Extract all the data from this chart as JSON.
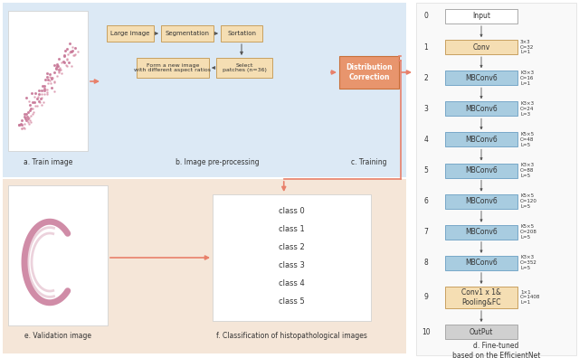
{
  "fig_width": 6.4,
  "fig_height": 3.96,
  "dpi": 100,
  "bg_color": "#ffffff",
  "top_panel_bg": "#dce9f5",
  "bottom_panel_bg": "#f5e6d8",
  "arrow_color": "#e8806a",
  "box_color_tan": "#f5deb3",
  "box_color_orange": "#e8956d",
  "box_color_blue": "#a8cce0",
  "box_color_gray": "#d0d0d0",
  "box_color_white": "#ffffff",
  "text_color": "#333333",
  "dark_arrow": "#555555",
  "efficientnet_nodes": [
    {
      "idx": 0,
      "label": "Input",
      "color": "#ffffff",
      "border": "#aaaaaa",
      "info": ""
    },
    {
      "idx": 1,
      "label": "Conv",
      "color": "#f5deb3",
      "border": "#c8a060",
      "info": "3×3\nC=32\nL=1"
    },
    {
      "idx": 2,
      "label": "MBConv6",
      "color": "#a8cce0",
      "border": "#78a8c8",
      "info": "K3×3\nC=16\nL=1"
    },
    {
      "idx": 3,
      "label": "MBConv6",
      "color": "#a8cce0",
      "border": "#78a8c8",
      "info": "K3×3\nC=24\nL=3"
    },
    {
      "idx": 4,
      "label": "MBConv6",
      "color": "#a8cce0",
      "border": "#78a8c8",
      "info": "K5×5\nC=48\nL=5"
    },
    {
      "idx": 5,
      "label": "MBConv6",
      "color": "#a8cce0",
      "border": "#78a8c8",
      "info": "K3×3\nC=88\nL=5"
    },
    {
      "idx": 6,
      "label": "MBConv6",
      "color": "#a8cce0",
      "border": "#78a8c8",
      "info": "K5×5\nC=120\nL=5"
    },
    {
      "idx": 7,
      "label": "MBConv6",
      "color": "#a8cce0",
      "border": "#78a8c8",
      "info": "K5×5\nC=208\nL=5"
    },
    {
      "idx": 8,
      "label": "MBConv6",
      "color": "#a8cce0",
      "border": "#78a8c8",
      "info": "K3×3\nC=352\nL=5"
    },
    {
      "idx": 9,
      "label": "Conv1 x 1&\nPooling&FC",
      "color": "#f5deb3",
      "border": "#c8a060",
      "info": "1×1\nC=1408\nL=1"
    },
    {
      "idx": 10,
      "label": "OutPut",
      "color": "#d0d0d0",
      "border": "#aaaaaa",
      "info": ""
    }
  ],
  "classes": [
    "class 0",
    "class 1",
    "class 2",
    "class 3",
    "class 4",
    "class 5"
  ],
  "label_a": "a. Train image",
  "label_b": "b. Image pre-processing",
  "label_c": "c. Training",
  "label_d": "d. Fine-tuned\nbased on the EfficientNet",
  "label_e": "e. Validation image",
  "label_f": "f. Classification of histopathological images"
}
